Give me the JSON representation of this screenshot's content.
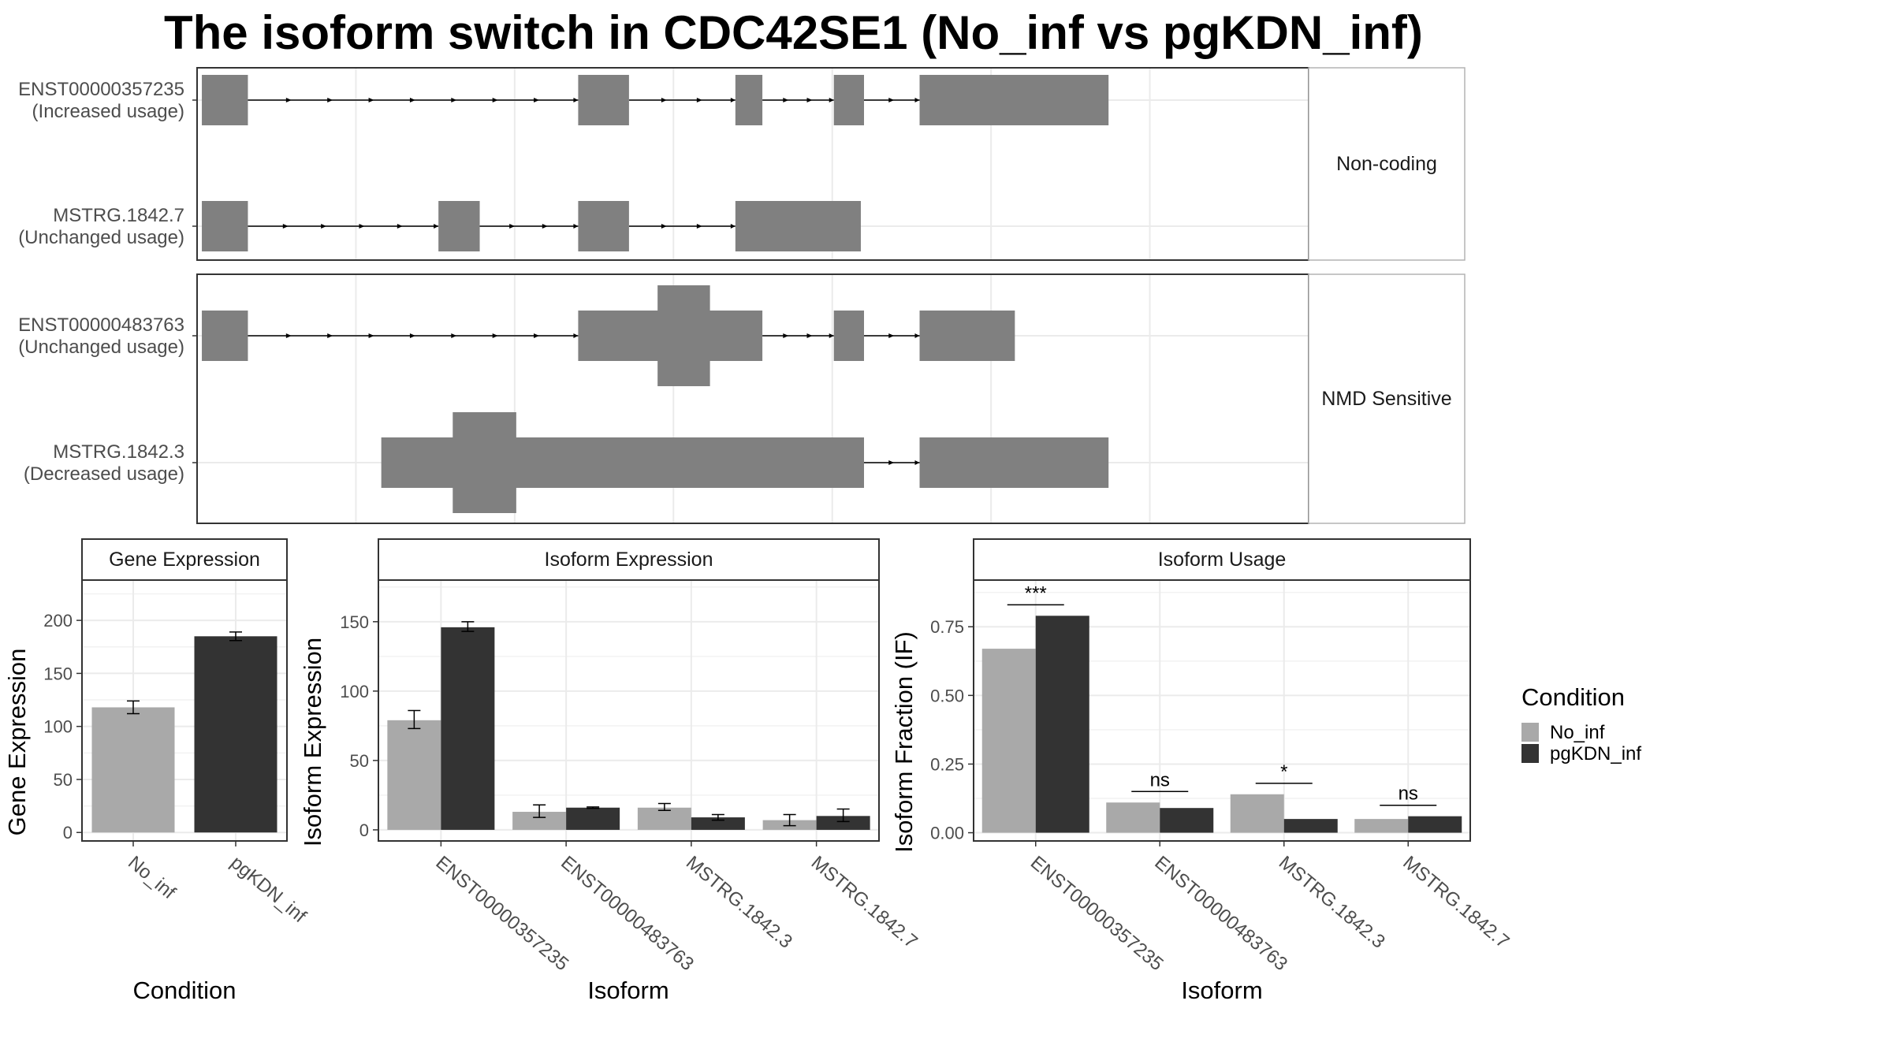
{
  "title": "The isoform switch in CDC42SE1 (No_inf vs pgKDN_inf)",
  "colors": {
    "no_inf": "#a9a9a9",
    "pgkdn_inf": "#333333",
    "exon": "#808080",
    "grid": "#ebebeb",
    "panel_border": "#333333",
    "strip_fill": "#ffffff"
  },
  "structure": {
    "facets": [
      {
        "label": "Non-coding",
        "isoforms": [
          {
            "id": "ENST00000357235",
            "usage": "(Increased usage)",
            "exons": [
              [
                0.3,
                3.2
              ],
              [
                24.0,
                27.2
              ],
              [
                33.9,
                35.6
              ],
              [
                40.1,
                42.0
              ],
              [
                45.5,
                57.4
              ]
            ]
          },
          {
            "id": "MSTRG.1842.7",
            "usage": "(Unchanged usage)",
            "exons": [
              [
                0.3,
                3.2
              ],
              [
                15.2,
                17.8
              ],
              [
                24.0,
                27.2
              ],
              [
                33.9,
                41.8
              ]
            ]
          }
        ]
      },
      {
        "label": "NMD Sensitive",
        "isoforms": [
          {
            "id": "ENST00000483763",
            "usage": "(Unchanged usage)",
            "exons": [
              [
                0.3,
                3.2
              ],
              [
                24.0,
                35.6
              ],
              [
                40.1,
                42.0
              ],
              [
                45.5,
                51.5
              ]
            ],
            "cds": [
              [
                29.0,
                32.3
              ]
            ]
          },
          {
            "id": "MSTRG.1842.3",
            "usage": "(Decreased usage)",
            "exons": [
              [
                11.6,
                42.0
              ],
              [
                45.5,
                57.4
              ]
            ],
            "cds": [
              [
                16.1,
                20.1
              ]
            ]
          }
        ]
      }
    ]
  },
  "legend": {
    "title": "Condition",
    "items": [
      "No_inf",
      "pgKDN_inf"
    ]
  },
  "chart_data": [
    {
      "type": "bar",
      "title": "Gene Expression",
      "xlabel": "Condition",
      "ylabel": "Gene Expression",
      "categories": [
        "No_inf",
        "pgKDN_inf"
      ],
      "ylim": [
        -8,
        238
      ],
      "yticks": [
        0,
        50,
        100,
        150,
        200
      ],
      "tick_labels": [
        "0",
        "50",
        "100",
        "150",
        "200"
      ],
      "values": [
        118,
        185
      ],
      "errors": [
        [
          112,
          124
        ],
        [
          181,
          189
        ]
      ]
    },
    {
      "type": "bar",
      "title": "Isoform Expression",
      "xlabel": "Isoform",
      "ylabel": "Isoform Expression",
      "categories": [
        "ENST00000357235",
        "ENST00000483763",
        "MSTRG.1842.3",
        "MSTRG.1842.7"
      ],
      "ylim": [
        -8,
        180
      ],
      "yticks": [
        0,
        50,
        100,
        150
      ],
      "tick_labels": [
        "0",
        "50",
        "100",
        "150"
      ],
      "series": [
        {
          "name": "No_inf",
          "values": [
            79,
            13,
            16,
            7
          ],
          "errors": [
            [
              73,
              86
            ],
            [
              9,
              18
            ],
            [
              14,
              19
            ],
            [
              3,
              11
            ]
          ]
        },
        {
          "name": "pgKDN_inf",
          "values": [
            146,
            16,
            9,
            10
          ],
          "errors": [
            [
              143,
              150
            ],
            [
              15.5,
              16.5
            ],
            [
              7,
              11
            ],
            [
              6,
              15
            ]
          ]
        }
      ]
    },
    {
      "type": "bar",
      "title": "Isoform Usage",
      "xlabel": "Isoform",
      "ylabel": "Isoform Fraction (IF)",
      "categories": [
        "ENST00000357235",
        "ENST00000483763",
        "MSTRG.1842.3",
        "MSTRG.1842.7"
      ],
      "ylim": [
        -0.03,
        0.92
      ],
      "yticks": [
        0,
        0.25,
        0.5,
        0.75
      ],
      "tick_labels": [
        "0.00",
        "0.25",
        "0.50",
        "0.75"
      ],
      "series": [
        {
          "name": "No_inf",
          "values": [
            0.67,
            0.11,
            0.14,
            0.05
          ]
        },
        {
          "name": "pgKDN_inf",
          "values": [
            0.79,
            0.09,
            0.05,
            0.06
          ]
        }
      ],
      "significance": [
        {
          "label": "***",
          "y": 0.83
        },
        {
          "label": "ns",
          "y": 0.15
        },
        {
          "label": "*",
          "y": 0.18
        },
        {
          "label": "ns",
          "y": 0.1
        }
      ]
    }
  ]
}
